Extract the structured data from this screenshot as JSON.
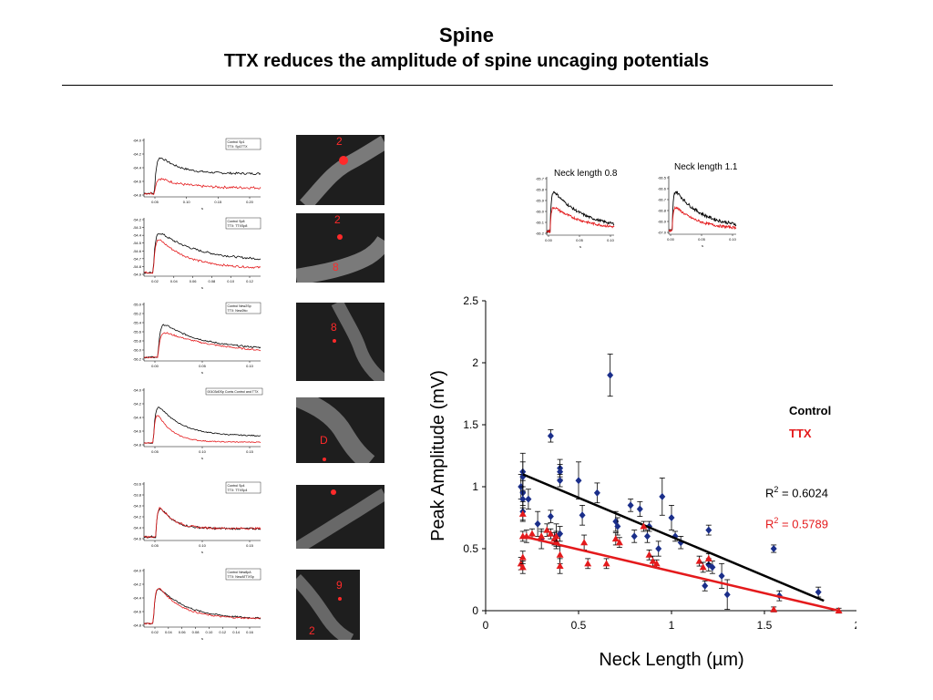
{
  "header": {
    "title": "Spine",
    "subtitle": "TTX reduces the amplitude of spine uncaging potentials"
  },
  "colors": {
    "control": "#000000",
    "ttx": "#e41a1c",
    "control_points": "#1a2e8a",
    "ttx_points": "#e41a1c"
  },
  "insets": {
    "left": {
      "label": "Neck length 0.8 µm",
      "yticks": [
        "-65.7",
        "-65.8",
        "-65.9",
        "-66.0",
        "-66.1",
        "-66.2"
      ],
      "xticks": [
        "0.00",
        "0.05",
        "0.10"
      ],
      "xunit": "s"
    },
    "right": {
      "label": "Neck length  1.1 µm",
      "yticks": [
        "-66.5",
        "-66.6",
        "-66.7",
        "-66.8",
        "-66.9",
        "-67.0"
      ],
      "xticks": [
        "0.00",
        "0.05",
        "0.10"
      ],
      "xunit": "s"
    }
  },
  "traces": [
    {
      "legend": [
        "Control  Sp1",
        "TTX:      Sp1TTX"
      ],
      "yticks": [
        "-64.0",
        "-64.2",
        "-64.4",
        "-64.6",
        "-64.8"
      ],
      "xticks": [
        "0.05",
        "0.10",
        "0.15",
        "0.20"
      ],
      "xunit": "s"
    },
    {
      "legend": [
        "Control  Sp8",
        "TTX:      TTXSp8"
      ],
      "yticks": [
        "-54.2",
        "-54.3",
        "-54.4",
        "-54.5",
        "-54.6",
        "-54.7",
        "-54.8",
        "-54.9"
      ],
      "xticks": [
        "0.02",
        "0.04",
        "0.06",
        "0.08",
        "0.10",
        "0.12"
      ],
      "xunit": "s"
    },
    {
      "legend": [
        "Control  New2Sp",
        "TTX:       New2tto"
      ],
      "yticks": [
        "-55.0",
        "-55.2",
        "-55.4",
        "-55.6",
        "-55.8",
        "-56.0",
        "-56.2"
      ],
      "xticks": [
        "0.00",
        "0.05",
        "0.10"
      ],
      "xunit": "s"
    },
    {
      "legend": [
        "00103d0Sp Conts Control and TTX"
      ],
      "yticks": [
        "-54.0",
        "-54.2",
        "-54.4",
        "-54.6",
        "-54.8"
      ],
      "xticks": [
        "0.05",
        "0.10",
        "0.15"
      ],
      "xunit": "s"
    },
    {
      "legend": [
        "Control  Sp4",
        "TTX:      TTXSp4"
      ],
      "yticks": [
        "-53.6",
        "-53.8",
        "-54.0",
        "-54.2",
        "-54.4",
        "-54.6"
      ],
      "xticks": [
        "0.05",
        "0.10",
        "0.15"
      ],
      "xunit": "s"
    },
    {
      "legend": [
        "Control  New8pA",
        "TTX:       NewATTXSp"
      ],
      "yticks": [
        "-64.0",
        "-64.2",
        "-64.4",
        "-64.6",
        "-64.8"
      ],
      "xticks": [
        "0.02",
        "0.04",
        "0.06",
        "0.08",
        "0.10",
        "0.12",
        "0.14",
        "0.16"
      ],
      "xunit": "s"
    }
  ],
  "micrographs": [
    {
      "labels": [
        "2"
      ]
    },
    {
      "labels": [
        "2",
        "8"
      ]
    },
    {
      "labels": [
        "8"
      ]
    },
    {
      "labels": [
        "D"
      ]
    },
    {
      "labels": []
    },
    {
      "labels": [
        "9",
        "2"
      ]
    }
  ],
  "chart_data": {
    "type": "scatter",
    "xlabel": "Neck Length (µm)",
    "ylabel": "Peak Amplitude (mV)",
    "xlim": [
      0,
      2
    ],
    "ylim": [
      0,
      2.5
    ],
    "xticks": [
      "0",
      "0.5",
      "1",
      "1.5",
      "2"
    ],
    "yticks": [
      "0",
      "0.5",
      "1",
      "1.5",
      "2",
      "2.5"
    ],
    "legend": [
      "Control",
      "TTX"
    ],
    "legend_position": "right",
    "annotations": [
      {
        "text": "R",
        "sup": "2",
        "value": " = 0.6024",
        "series": "Control"
      },
      {
        "text": "R",
        "sup": "2",
        "value": " = 0.5789",
        "series": "TTX"
      }
    ],
    "series": [
      {
        "name": "Control",
        "marker": "diamond",
        "x": [
          0.19,
          0.2,
          0.2,
          0.2,
          0.2,
          0.2,
          0.23,
          0.28,
          0.3,
          0.35,
          0.35,
          0.38,
          0.4,
          0.4,
          0.4,
          0.4,
          0.5,
          0.52,
          0.6,
          0.67,
          0.7,
          0.71,
          0.78,
          0.8,
          0.83,
          0.87,
          0.88,
          0.93,
          0.95,
          1.0,
          1.02,
          1.05,
          1.18,
          1.2,
          1.2,
          1.22,
          1.27,
          1.3,
          1.55,
          1.58,
          1.79
        ],
        "y": [
          1.0,
          1.12,
          1.08,
          0.95,
          0.9,
          0.8,
          0.9,
          0.7,
          0.58,
          1.41,
          0.76,
          0.6,
          1.15,
          1.12,
          1.05,
          0.62,
          1.05,
          0.77,
          0.95,
          1.9,
          0.72,
          0.68,
          0.85,
          0.6,
          0.82,
          0.6,
          0.68,
          0.5,
          0.92,
          0.75,
          0.6,
          0.55,
          0.2,
          0.65,
          0.37,
          0.35,
          0.28,
          0.13,
          0.5,
          0.12,
          0.15
        ],
        "yerr": [
          0.1,
          0.15,
          0.12,
          0.1,
          0.1,
          0.08,
          0.08,
          0.1,
          0.08,
          0.05,
          0.05,
          0.1,
          0.07,
          0.06,
          0.05,
          0.06,
          0.15,
          0.08,
          0.08,
          0.17,
          0.08,
          0.07,
          0.05,
          0.05,
          0.06,
          0.05,
          0.04,
          0.06,
          0.15,
          0.1,
          0.04,
          0.05,
          0.04,
          0.04,
          0.05,
          0.05,
          0.1,
          0.12,
          0.03,
          0.04,
          0.04
        ],
        "fit": {
          "x": [
            0.2,
            1.82
          ],
          "y": [
            1.1,
            0.08
          ]
        },
        "r2": "0.6024"
      },
      {
        "name": "TTX",
        "marker": "triangle",
        "x": [
          0.19,
          0.2,
          0.2,
          0.2,
          0.2,
          0.22,
          0.25,
          0.3,
          0.33,
          0.35,
          0.37,
          0.38,
          0.38,
          0.4,
          0.4,
          0.53,
          0.55,
          0.65,
          0.7,
          0.72,
          0.85,
          0.88,
          0.9,
          0.92,
          1.15,
          1.17,
          1.2,
          1.55,
          1.9
        ],
        "y": [
          0.38,
          0.78,
          0.6,
          0.43,
          0.35,
          0.6,
          0.62,
          0.6,
          0.65,
          0.62,
          0.58,
          0.56,
          0.6,
          0.45,
          0.36,
          0.55,
          0.38,
          0.38,
          0.58,
          0.55,
          0.68,
          0.45,
          0.4,
          0.38,
          0.4,
          0.35,
          0.42,
          0.01,
          0.0
        ],
        "yerr": [
          0.05,
          0.05,
          0.04,
          0.05,
          0.05,
          0.05,
          0.04,
          0.04,
          0.05,
          0.04,
          0.05,
          0.04,
          0.04,
          0.07,
          0.06,
          0.06,
          0.04,
          0.04,
          0.05,
          0.04,
          0.04,
          0.04,
          0.04,
          0.03,
          0.04,
          0.04,
          0.04,
          0.02,
          0.02
        ],
        "fit": {
          "x": [
            0.2,
            1.9
          ],
          "y": [
            0.6,
            0.0
          ]
        },
        "r2": "0.5789"
      }
    ]
  }
}
